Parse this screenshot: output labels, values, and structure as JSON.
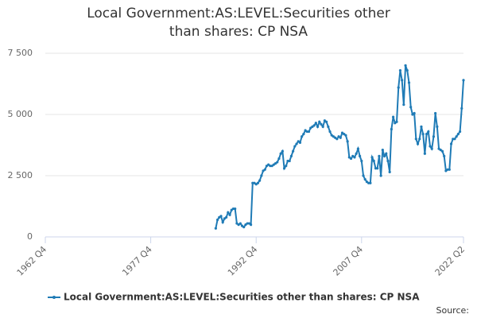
{
  "chart_data": {
    "type": "line",
    "title": "Local Government:AS:LEVEL:Securities other than shares: CP NSA",
    "source": "Source:",
    "x": [
      "1987 Q1",
      "1987 Q2",
      "1987 Q3",
      "1987 Q4",
      "1988 Q1",
      "1988 Q2",
      "1988 Q3",
      "1988 Q4",
      "1989 Q1",
      "1989 Q2",
      "1989 Q3",
      "1989 Q4",
      "1990 Q1",
      "1990 Q2",
      "1990 Q3",
      "1990 Q4",
      "1991 Q1",
      "1991 Q2",
      "1991 Q3",
      "1991 Q4",
      "1992 Q1",
      "1992 Q2",
      "1992 Q3",
      "1992 Q4",
      "1993 Q1",
      "1993 Q2",
      "1993 Q3",
      "1993 Q4",
      "1994 Q1",
      "1994 Q2",
      "1994 Q3",
      "1994 Q4",
      "1995 Q1",
      "1995 Q2",
      "1995 Q3",
      "1995 Q4",
      "1996 Q1",
      "1996 Q2",
      "1996 Q3",
      "1996 Q4",
      "1997 Q1",
      "1997 Q2",
      "1997 Q3",
      "1997 Q4",
      "1998 Q1",
      "1998 Q2",
      "1998 Q3",
      "1998 Q4",
      "1999 Q1",
      "1999 Q2",
      "1999 Q3",
      "1999 Q4",
      "2000 Q1",
      "2000 Q2",
      "2000 Q3",
      "2000 Q4",
      "2001 Q1",
      "2001 Q2",
      "2001 Q3",
      "2001 Q4",
      "2002 Q1",
      "2002 Q2",
      "2002 Q3",
      "2002 Q4",
      "2003 Q1",
      "2003 Q2",
      "2003 Q3",
      "2003 Q4",
      "2004 Q1",
      "2004 Q2",
      "2004 Q3",
      "2004 Q4",
      "2005 Q1",
      "2005 Q2",
      "2005 Q3",
      "2005 Q4",
      "2006 Q1",
      "2006 Q2",
      "2006 Q3",
      "2006 Q4",
      "2007 Q1",
      "2007 Q2",
      "2007 Q3",
      "2007 Q4",
      "2008 Q1",
      "2008 Q2",
      "2008 Q3",
      "2008 Q4",
      "2009 Q1",
      "2009 Q2",
      "2009 Q3",
      "2009 Q4",
      "2010 Q1",
      "2010 Q2",
      "2010 Q3",
      "2010 Q4",
      "2011 Q1",
      "2011 Q2",
      "2011 Q3",
      "2011 Q4",
      "2012 Q1",
      "2012 Q2",
      "2012 Q3",
      "2012 Q4",
      "2013 Q1",
      "2013 Q2",
      "2013 Q3",
      "2013 Q4",
      "2014 Q1",
      "2014 Q2",
      "2014 Q3",
      "2014 Q4",
      "2015 Q1",
      "2015 Q2",
      "2015 Q3",
      "2015 Q4",
      "2016 Q1",
      "2016 Q2",
      "2016 Q3",
      "2016 Q4",
      "2017 Q1",
      "2017 Q2",
      "2017 Q3",
      "2017 Q4",
      "2018 Q1",
      "2018 Q2",
      "2018 Q3",
      "2018 Q4",
      "2019 Q1",
      "2019 Q2",
      "2019 Q3",
      "2019 Q4",
      "2020 Q1",
      "2020 Q2",
      "2020 Q3",
      "2020 Q4",
      "2021 Q1",
      "2021 Q2",
      "2021 Q3",
      "2021 Q4",
      "2022 Q1",
      "2022 Q2"
    ],
    "series": [
      {
        "name": "Local Government:AS:LEVEL:Securities other than shares: CP NSA",
        "color": "#1f7bb6",
        "values": [
          350,
          700,
          800,
          850,
          600,
          750,
          800,
          1000,
          900,
          1100,
          1150,
          1150,
          550,
          500,
          550,
          450,
          400,
          500,
          550,
          550,
          500,
          2200,
          2200,
          2150,
          2200,
          2300,
          2500,
          2700,
          2750,
          2900,
          2950,
          2900,
          2900,
          2950,
          3000,
          3050,
          3200,
          3400,
          3500,
          2800,
          2900,
          3100,
          3100,
          3300,
          3500,
          3700,
          3800,
          3900,
          3850,
          4100,
          4200,
          4350,
          4300,
          4300,
          4450,
          4500,
          4550,
          4650,
          4500,
          4700,
          4600,
          4500,
          4750,
          4700,
          4500,
          4300,
          4150,
          4100,
          4050,
          4000,
          4100,
          4050,
          4250,
          4200,
          4150,
          3900,
          3250,
          3200,
          3300,
          3250,
          3400,
          3600,
          3300,
          3100,
          2500,
          2350,
          2250,
          2200,
          2200,
          3250,
          3100,
          2800,
          2800,
          3300,
          2500,
          3550,
          3300,
          3400,
          3100,
          2650,
          4400,
          4900,
          4650,
          4700,
          6100,
          6800,
          6400,
          5400,
          7000,
          6800,
          6300,
          5300,
          5000,
          5050,
          4000,
          3800,
          4000,
          4500,
          4200,
          3400,
          4200,
          4300,
          3700,
          3600,
          4100,
          5050,
          4500,
          3600,
          3550,
          3500,
          3300,
          2700,
          2750,
          2750,
          3800,
          4000,
          4000,
          4100,
          4200,
          4300,
          5250,
          6400
        ]
      }
    ],
    "xlim": [
      "1962 Q4",
      "2022 Q2"
    ],
    "xticks": [
      "1962 Q4",
      "1977 Q4",
      "1992 Q4",
      "2007 Q4",
      "2022 Q2"
    ],
    "ylim": [
      0,
      7500
    ],
    "yticks": [
      0,
      {
        "value": 2500,
        "label": "2 500"
      },
      {
        "value": 5000,
        "label": "5 000"
      },
      {
        "value": 7500,
        "label": "7 500"
      }
    ],
    "grid": true,
    "legend": "bottom"
  }
}
